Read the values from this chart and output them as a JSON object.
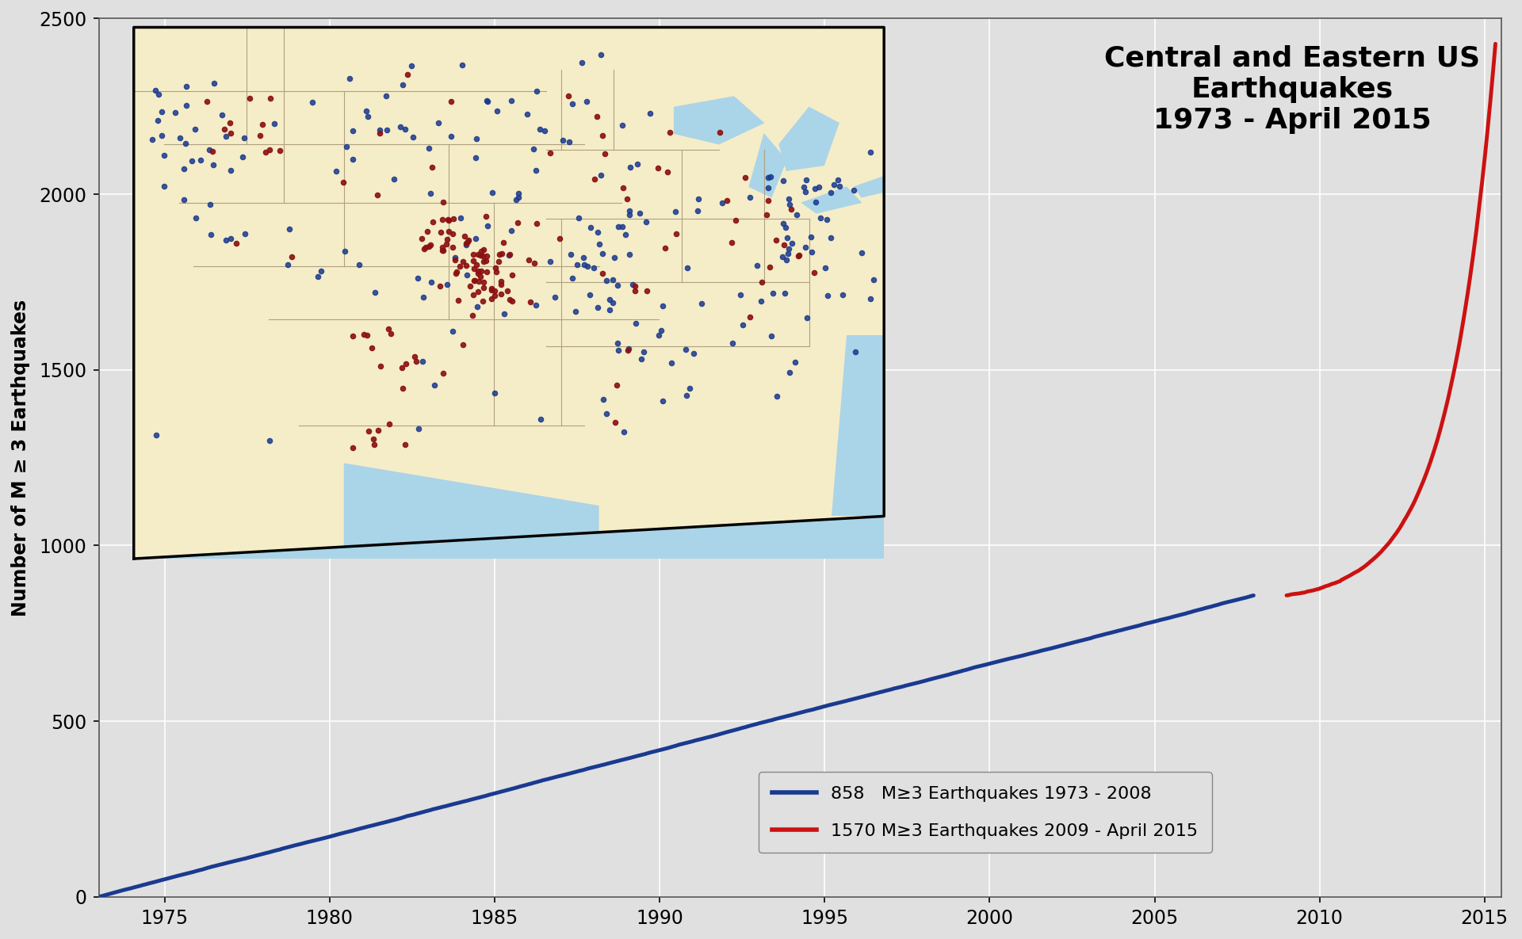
{
  "title": "Central and Eastern US\nEarthquakes\n1973 - April 2015",
  "ylabel": "Number of M ≥ 3 Earthquakes",
  "fig_bg_color": "#e0e0e0",
  "plot_bg_color": "#e0e0e0",
  "grid_color": "#ffffff",
  "ylim": [
    0,
    2500
  ],
  "yticks": [
    0,
    500,
    1000,
    1500,
    2000,
    2500
  ],
  "xlim_start": 1973,
  "xlim_end": 2015.5,
  "xticks": [
    1975,
    1980,
    1985,
    1990,
    1995,
    2000,
    2005,
    2010,
    2015
  ],
  "blue_color": "#1a3a8f",
  "red_color": "#cc1111",
  "legend_blue": "858   M≥3 Earthquakes 1973 - 2008",
  "legend_red": "1570 M≥3 Earthquakes 2009 - April 2015",
  "phase1_start_year": 1973,
  "phase1_end_year": 2008,
  "phase1_total": 858,
  "phase2_start_year": 2009,
  "phase2_end_year": 2015.33,
  "phase2_total": 1570,
  "title_fontsize": 26,
  "label_fontsize": 17,
  "tick_fontsize": 17,
  "legend_fontsize": 16,
  "map_land_color": "#f5edc8",
  "map_water_color": "#aad4e8",
  "map_border_color": "#a09070",
  "map_line_color": "#b0a080"
}
